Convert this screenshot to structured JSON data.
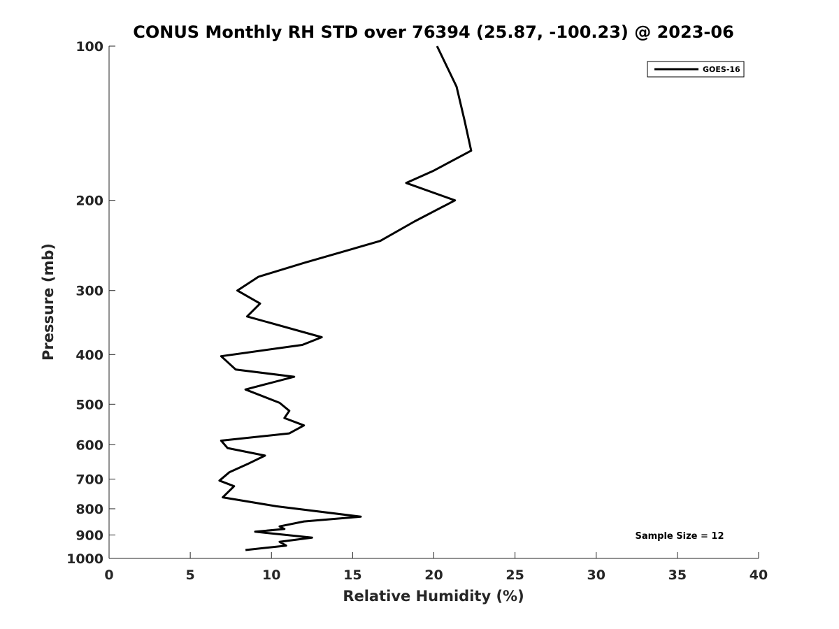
{
  "chart_data": {
    "type": "line",
    "title": "CONUS Monthly RH STD over 76394 (25.87, -100.23) @ 2023-06",
    "xlabel": "Relative Humidity (%)",
    "ylabel": "Pressure (mb)",
    "xlim": [
      0,
      40
    ],
    "ylim": [
      100,
      1000
    ],
    "y_scale": "log",
    "y_reversed": true,
    "xticks": [
      0,
      5,
      10,
      15,
      20,
      25,
      30,
      35,
      40
    ],
    "xtick_labels": [
      "0",
      "5",
      "10",
      "15",
      "20",
      "25",
      "30",
      "35",
      "40"
    ],
    "yticks": [
      100,
      200,
      300,
      400,
      500,
      600,
      700,
      800,
      900,
      1000
    ],
    "ytick_labels": [
      "100",
      "200",
      "300",
      "400",
      "500",
      "600",
      "700",
      "800",
      "900",
      "1000"
    ],
    "grid": false,
    "legend_position": "top-right",
    "series": [
      {
        "name": "GOES-16",
        "color": "#000000",
        "points": [
          [
            20.2,
            100
          ],
          [
            21.4,
            120
          ],
          [
            21.9,
            140
          ],
          [
            22.3,
            160
          ],
          [
            20.0,
            175
          ],
          [
            18.3,
            185
          ],
          [
            21.3,
            200
          ],
          [
            18.8,
            220
          ],
          [
            16.7,
            240
          ],
          [
            12.0,
            265
          ],
          [
            9.2,
            282
          ],
          [
            7.9,
            300
          ],
          [
            9.3,
            318
          ],
          [
            8.5,
            337
          ],
          [
            13.1,
            370
          ],
          [
            11.9,
            383
          ],
          [
            6.9,
            403
          ],
          [
            7.8,
            428
          ],
          [
            11.4,
            442
          ],
          [
            8.4,
            468
          ],
          [
            10.5,
            497
          ],
          [
            11.1,
            515
          ],
          [
            10.8,
            532
          ],
          [
            12.0,
            550
          ],
          [
            11.1,
            570
          ],
          [
            6.9,
            589
          ],
          [
            7.3,
            609
          ],
          [
            9.6,
            630
          ],
          [
            8.5,
            655
          ],
          [
            7.4,
            679
          ],
          [
            6.8,
            705
          ],
          [
            7.7,
            723
          ],
          [
            7.0,
            760
          ],
          [
            10.3,
            791
          ],
          [
            15.5,
            829
          ],
          [
            12.0,
            847
          ],
          [
            10.5,
            866
          ],
          [
            10.8,
            876
          ],
          [
            9.0,
            887
          ],
          [
            12.5,
            911
          ],
          [
            10.5,
            928
          ],
          [
            10.9,
            944
          ],
          [
            8.4,
            963
          ]
        ]
      }
    ],
    "annotations": [
      "Sample Size = 12"
    ]
  }
}
